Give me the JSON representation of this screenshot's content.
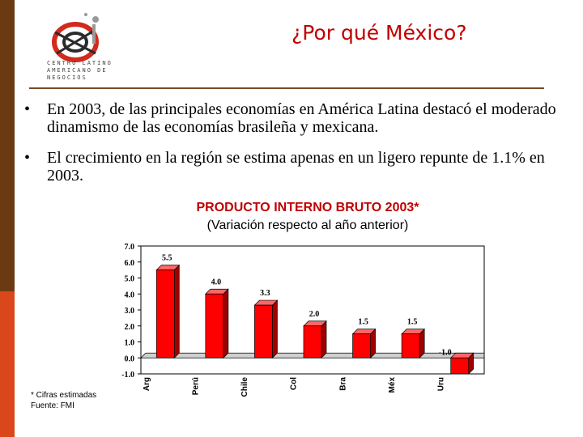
{
  "header": {
    "title": "¿Por qué México?",
    "logo_text": "CENTRO LATINO AMERICANO DE NEGOCIOS"
  },
  "bullets": [
    "En 2003, de las principales economías en América Latina destacó el moderado dinamismo de las economías brasileña y mexicana.",
    "El crecimiento en la región se estima apenas en un ligero repunte de 1.1% en 2003."
  ],
  "colors": {
    "title": "#c00000",
    "bar": "#ff0000",
    "left_bar_top": "#6b3a12",
    "left_bar_bottom": "#d9471b"
  },
  "chart_data": {
    "type": "bar",
    "title": "PRODUCTO INTERNO BRUTO 2003*",
    "subtitle": "(Variación respecto al año anterior)",
    "categories": [
      "Arg",
      "Perú",
      "Chile",
      "Col",
      "Bra",
      "Méx",
      "Uru"
    ],
    "values": [
      5.5,
      4.0,
      3.3,
      2.0,
      1.5,
      1.5,
      -1.0
    ],
    "value_labels": [
      "5.5",
      "4.0",
      "3.3",
      "2.0",
      "1.5",
      "1.5",
      "-1.0"
    ],
    "yticks": [
      "7.0",
      "6.0",
      "5.0",
      "4.0",
      "3.0",
      "2.0",
      "1.0",
      "0.0",
      "-1.0"
    ],
    "ylim": [
      -1,
      7
    ],
    "grid": false,
    "style": "3d"
  },
  "notes": [
    "* Cifras estimadas",
    "Fuente: FMI"
  ]
}
